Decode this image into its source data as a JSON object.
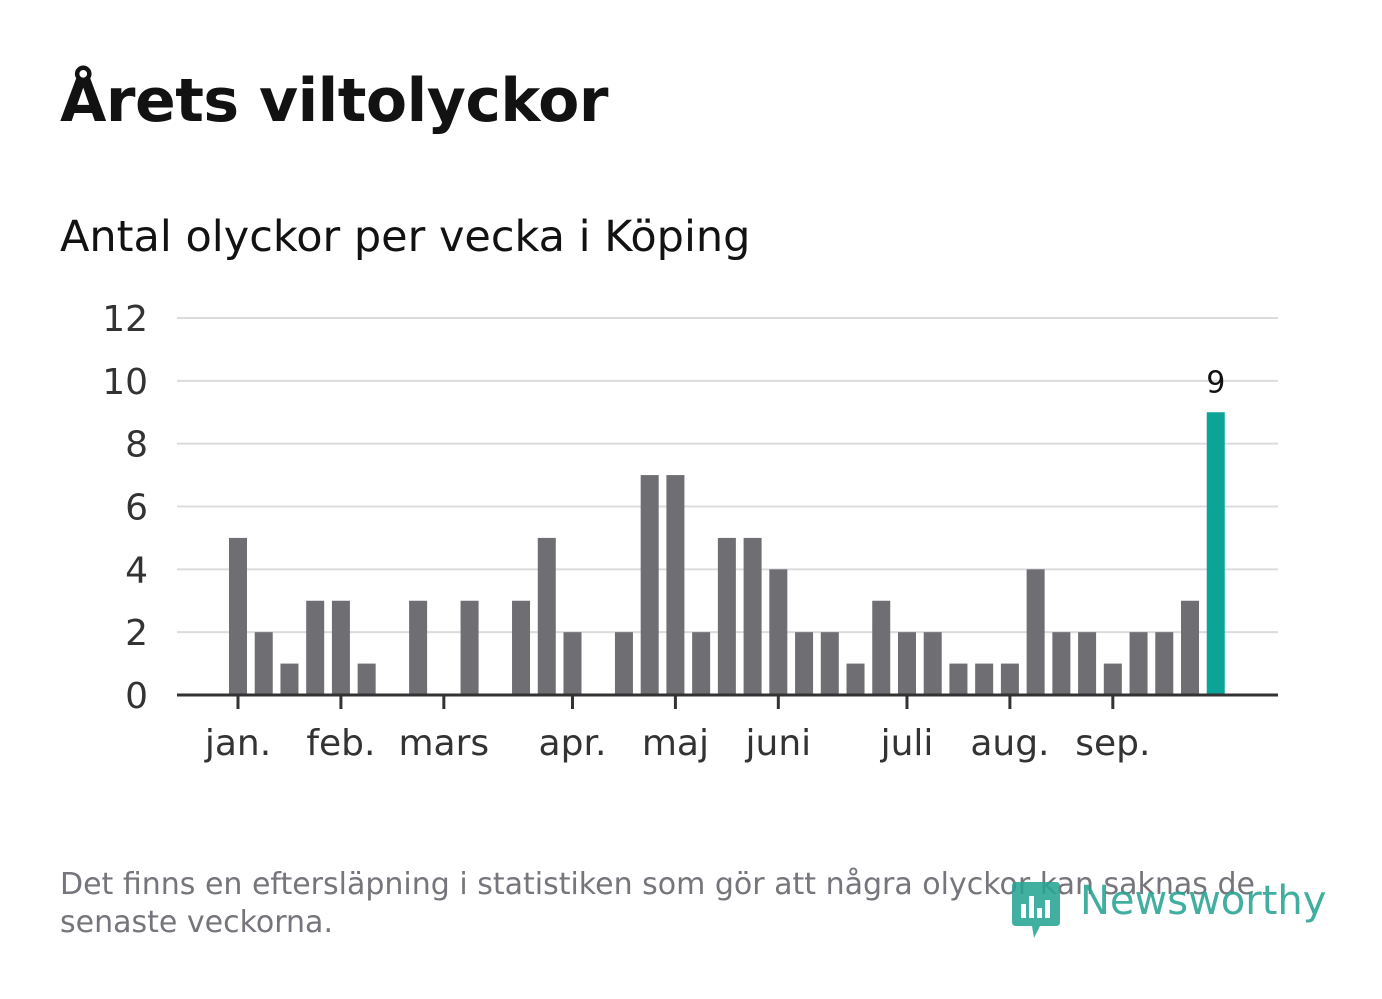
{
  "title": "Årets viltolyckor",
  "subtitle": "Antal olyckor per vecka i Köping",
  "footnote": "Det finns en eftersläpning i statistiken som gör att några olyckor kan saknas de senaste veckorna.",
  "logo": {
    "text": "Newsworthy",
    "icon": "newsworthy-logo-icon"
  },
  "colors": {
    "bar": "#6e6e73",
    "highlight": "#0aa596",
    "grid": "#dcdcdc",
    "axis": "#333333",
    "text": "#333333",
    "footnote": "#75757b"
  },
  "chart_data": {
    "type": "bar",
    "title": "Antal olyckor per vecka i Köping",
    "xlabel": "",
    "ylabel": "",
    "ylim": [
      0,
      12
    ],
    "yticks": [
      0,
      2,
      4,
      6,
      8,
      10,
      12
    ],
    "grid": true,
    "values": [
      5,
      2,
      1,
      3,
      3,
      1,
      0,
      3,
      0,
      3,
      0,
      3,
      5,
      2,
      0,
      2,
      7,
      7,
      2,
      5,
      5,
      4,
      2,
      2,
      1,
      3,
      2,
      2,
      1,
      1,
      1,
      4,
      2,
      2,
      1,
      2,
      2,
      3,
      9
    ],
    "highlight_index": 38,
    "highlight_label": "9",
    "month_labels": [
      {
        "label": "jan.",
        "week_index": 0
      },
      {
        "label": "feb.",
        "week_index": 4
      },
      {
        "label": "mars",
        "week_index": 8
      },
      {
        "label": "apr.",
        "week_index": 13
      },
      {
        "label": "maj",
        "week_index": 17
      },
      {
        "label": "juni",
        "week_index": 21
      },
      {
        "label": "juli",
        "week_index": 26
      },
      {
        "label": "aug.",
        "week_index": 30
      },
      {
        "label": "sep.",
        "week_index": 34
      }
    ]
  }
}
